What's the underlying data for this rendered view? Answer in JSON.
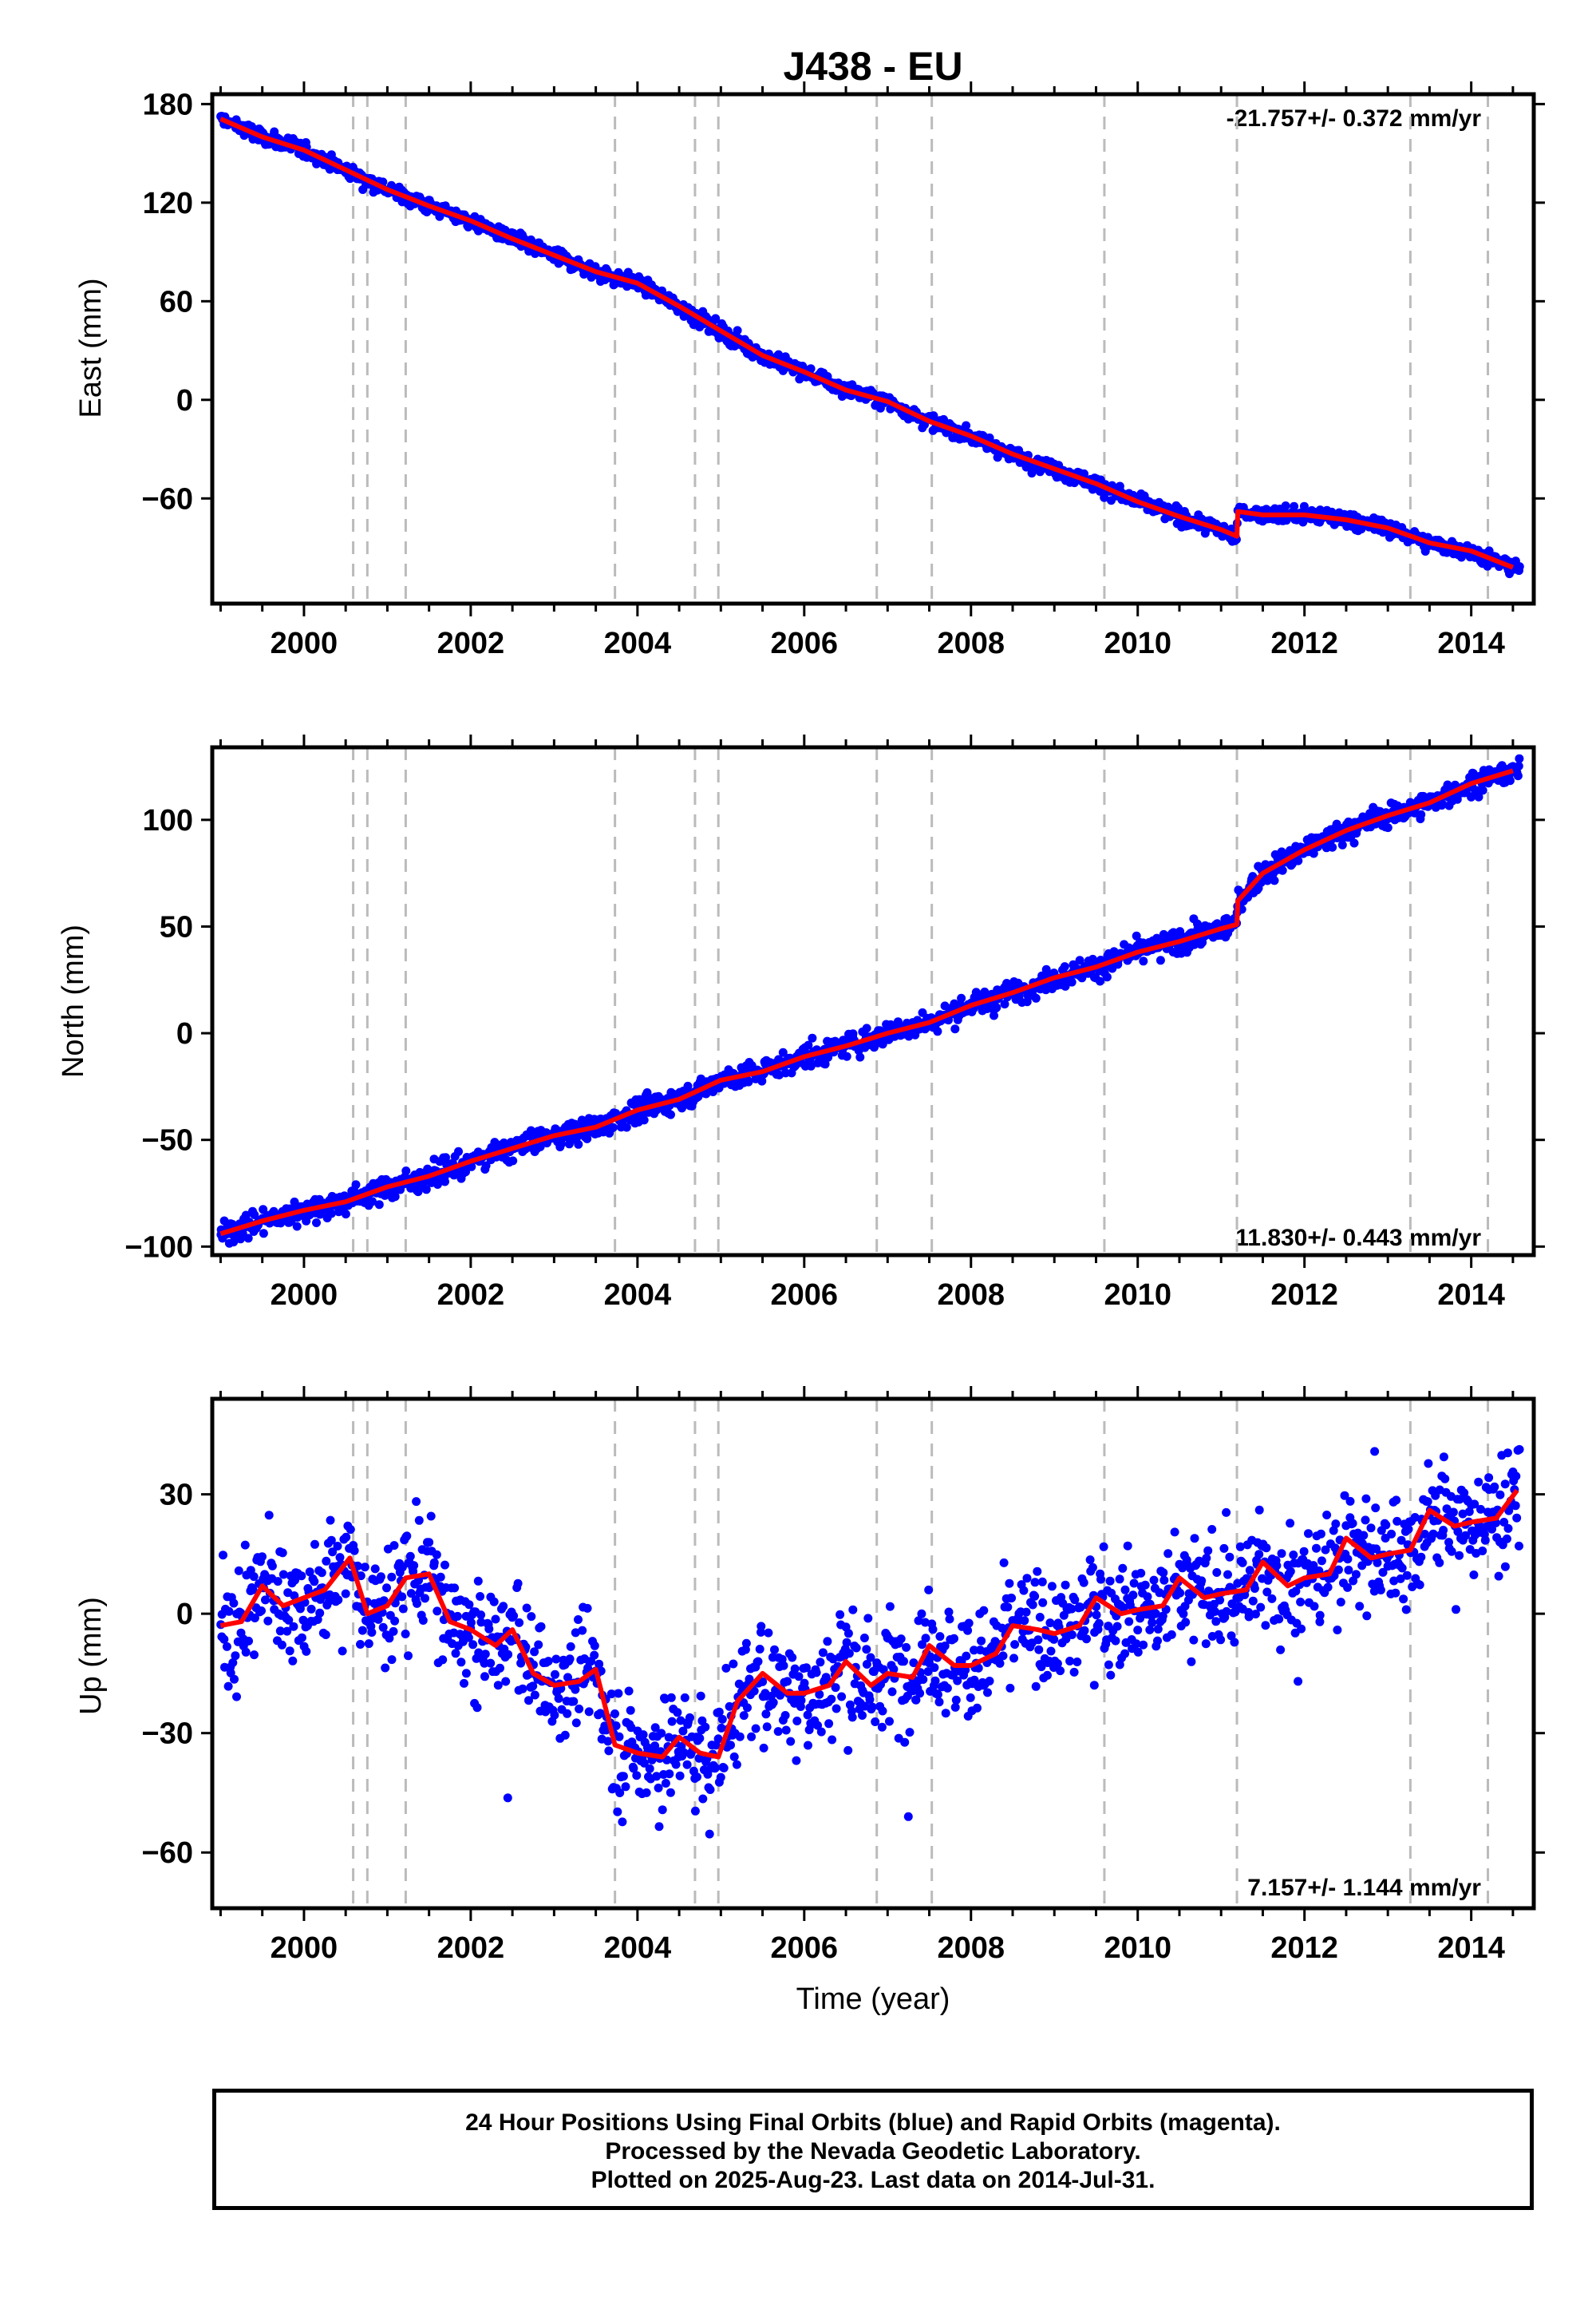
{
  "chart_data": [
    {
      "type": "scatter",
      "title": "J438 - EU",
      "ylabel": "East (mm)",
      "xlabel": "",
      "xlim": [
        1998.9,
        2014.75
      ],
      "ylim": [
        -124,
        186
      ],
      "yticks": [
        180,
        120,
        60,
        0,
        -60
      ],
      "xticks": [
        2000,
        2002,
        2004,
        2006,
        2008,
        2010,
        2012,
        2014
      ],
      "rate_label": "-21.757+/- 0.372 mm/yr",
      "rate_position": "top-right",
      "grid": false,
      "steps": [
        2000.59,
        2000.76,
        2001.22,
        2003.73,
        2004.69,
        2004.97,
        2006.87,
        2007.53,
        2009.6,
        2011.19,
        2013.27,
        2014.2
      ],
      "trend_x": [
        1999.0,
        1999.5,
        2000.0,
        2000.5,
        2001.0,
        2001.5,
        2002.0,
        2002.5,
        2003.0,
        2003.5,
        2004.0,
        2004.5,
        2005.0,
        2005.5,
        2006.0,
        2006.5,
        2007.0,
        2007.5,
        2008.0,
        2008.5,
        2009.0,
        2009.5,
        2010.0,
        2010.5,
        2011.0,
        2011.19,
        2011.2,
        2011.5,
        2012.0,
        2012.5,
        2013.0,
        2013.5,
        2014.0,
        2014.5
      ],
      "trend_y": [
        171,
        160,
        152,
        140,
        128,
        118,
        109,
        98,
        88,
        78,
        71,
        57,
        42,
        27,
        17,
        6,
        -1,
        -13,
        -22,
        -33,
        -42,
        -51,
        -62,
        -71,
        -79,
        -83,
        -68,
        -70,
        -70,
        -73,
        -78,
        -87,
        -92,
        -102
      ],
      "series": [
        {
          "name": "Final Orbits",
          "color": "#0000ff",
          "scatter": 3.0
        },
        {
          "name": "Trend",
          "color": "#ff0000"
        }
      ]
    },
    {
      "type": "scatter",
      "title": "",
      "ylabel": "North (mm)",
      "xlabel": "",
      "xlim": [
        1998.9,
        2014.75
      ],
      "ylim": [
        -104,
        134
      ],
      "yticks": [
        100,
        50,
        0,
        -50,
        -100
      ],
      "xticks": [
        2000,
        2002,
        2004,
        2006,
        2008,
        2010,
        2012,
        2014
      ],
      "rate_label": "11.830+/- 0.443 mm/yr",
      "rate_position": "bottom-right",
      "grid": false,
      "steps": [
        2000.59,
        2000.76,
        2001.22,
        2003.73,
        2004.69,
        2004.97,
        2006.87,
        2007.53,
        2009.6,
        2011.19,
        2013.27,
        2014.2
      ],
      "trend_x": [
        1999.0,
        1999.5,
        2000.0,
        2000.5,
        2001.0,
        2001.5,
        2002.0,
        2002.5,
        2003.0,
        2003.5,
        2004.0,
        2004.5,
        2005.0,
        2005.5,
        2006.0,
        2006.5,
        2007.0,
        2007.5,
        2008.0,
        2008.5,
        2009.0,
        2009.5,
        2010.0,
        2010.5,
        2011.0,
        2011.19,
        2011.2,
        2011.5,
        2012.0,
        2012.5,
        2013.0,
        2013.5,
        2014.0,
        2014.5
      ],
      "trend_y": [
        -94,
        -88,
        -83,
        -79,
        -72,
        -67,
        -60,
        -54,
        -48,
        -44,
        -36,
        -31,
        -22,
        -18,
        -11,
        -6,
        0,
        5,
        13,
        19,
        26,
        31,
        38,
        43,
        49,
        51,
        62,
        75,
        86,
        95,
        102,
        108,
        117,
        123
      ],
      "series": [
        {
          "name": "Final Orbits",
          "color": "#0000ff",
          "scatter": 3.5
        },
        {
          "name": "Trend",
          "color": "#ff0000"
        }
      ]
    },
    {
      "type": "scatter",
      "title": "",
      "ylabel": "Up (mm)",
      "xlabel": "Time (year)",
      "xlim": [
        1998.9,
        2014.75
      ],
      "ylim": [
        -74,
        54
      ],
      "yticks": [
        30,
        0,
        -30,
        -60
      ],
      "xticks": [
        2000,
        2002,
        2004,
        2006,
        2008,
        2010,
        2012,
        2014
      ],
      "rate_label": "7.157+/- 1.144 mm/yr",
      "rate_position": "bottom-right",
      "grid": false,
      "steps": [
        2000.59,
        2000.76,
        2001.22,
        2003.73,
        2004.69,
        2004.97,
        2006.87,
        2007.53,
        2009.6,
        2011.19,
        2013.27,
        2014.2
      ],
      "trend_x": [
        1999.0,
        1999.25,
        1999.5,
        1999.75,
        2000.0,
        2000.25,
        2000.55,
        2000.76,
        2001.0,
        2001.22,
        2001.5,
        2001.75,
        2002.0,
        2002.3,
        2002.5,
        2002.75,
        2003.0,
        2003.3,
        2003.5,
        2003.73,
        2004.0,
        2004.3,
        2004.5,
        2004.75,
        2004.97,
        2005.2,
        2005.5,
        2005.8,
        2006.0,
        2006.3,
        2006.5,
        2006.8,
        2007.0,
        2007.3,
        2007.5,
        2007.8,
        2008.0,
        2008.3,
        2008.5,
        2008.8,
        2009.0,
        2009.3,
        2009.5,
        2009.8,
        2010.0,
        2010.3,
        2010.5,
        2010.8,
        2011.0,
        2011.3,
        2011.5,
        2011.8,
        2012.0,
        2012.3,
        2012.5,
        2012.8,
        2013.0,
        2013.27,
        2013.5,
        2013.8,
        2014.0,
        2014.3,
        2014.55
      ],
      "trend_y": [
        -3,
        -2,
        7,
        2,
        4,
        6,
        14,
        0,
        2,
        9,
        10,
        -2,
        -4,
        -8,
        -4,
        -15,
        -18,
        -17,
        -14,
        -33,
        -35,
        -36,
        -31,
        -35,
        -36,
        -22,
        -15,
        -20,
        -20,
        -18,
        -12,
        -18,
        -15,
        -16,
        -8,
        -13,
        -13,
        -10,
        -3,
        -4,
        -5,
        -3,
        4,
        0,
        1,
        2,
        9,
        4,
        5,
        6,
        13,
        7,
        9,
        10,
        19,
        14,
        15,
        16,
        26,
        22,
        23,
        24,
        31
      ],
      "series": [
        {
          "name": "Final Orbits",
          "color": "#0000ff",
          "scatter": 9.0
        },
        {
          "name": "Trend",
          "color": "#ff0000"
        }
      ]
    }
  ],
  "footer": {
    "line1": "24 Hour Positions Using Final Orbits (blue) and Rapid Orbits (magenta).",
    "line2": "Processed by the Nevada Geodetic Laboratory.",
    "line3": "Plotted on 2025-Aug-23. Last data on 2014-Jul-31."
  },
  "colors": {
    "data_points": "#0000ff",
    "trend_line": "#ff0000",
    "step_lines": "#bbbbbb",
    "frame": "#000000"
  }
}
